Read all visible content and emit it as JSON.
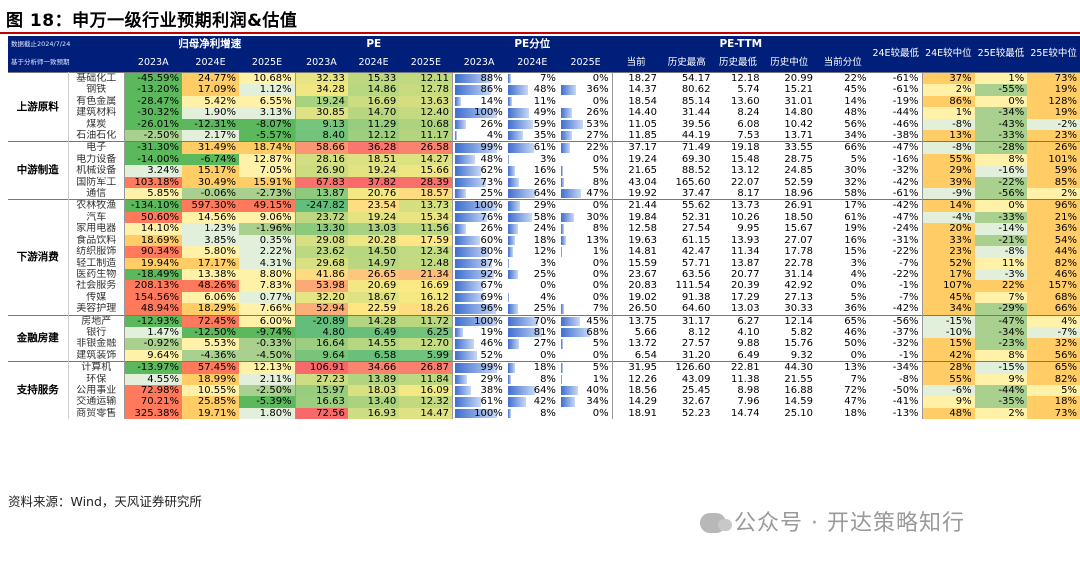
{
  "title": "图 18：申万一级行业预期利润&估值",
  "source": "资料来源：Wind，天风证券研究所",
  "watermark": "公众号 · 开达策略知行",
  "header": {
    "note1": "数据截止2024/7/24",
    "note2": "基于分析师一致预期",
    "profit_growth": "归母净利增速",
    "pe": "PE",
    "pe_pct": "PE分位",
    "pe_ttm": "PE-TTM",
    "years": [
      "2023A",
      "2024E",
      "2025E"
    ],
    "ttm_cols": [
      "当前",
      "历史最高",
      "历史最低",
      "历史中位",
      "当前分位"
    ],
    "extra_cols": [
      "24E较最低",
      "24E较中位",
      "25E较最低",
      "25E较中位"
    ]
  },
  "groups": [
    {
      "name": "上游原料",
      "rows": [
        [
          "基础化工",
          "-45.59%",
          "24.77%",
          "10.68%",
          "32.33",
          "15.33",
          "12.11",
          "88%",
          "7%",
          "0%",
          "18.27",
          "54.17",
          "12.18",
          "20.99",
          "22%",
          "-61%",
          "37%",
          "1%",
          "73%"
        ],
        [
          "钢铁",
          "-13.20%",
          "17.09%",
          "1.12%",
          "34.28",
          "14.86",
          "12.78",
          "86%",
          "48%",
          "36%",
          "14.37",
          "80.62",
          "5.74",
          "15.21",
          "45%",
          "-61%",
          "2%",
          "-55%",
          "19%"
        ],
        [
          "有色金属",
          "-28.47%",
          "5.42%",
          "6.55%",
          "19.24",
          "16.69",
          "13.63",
          "14%",
          "11%",
          "0%",
          "18.54",
          "85.14",
          "13.60",
          "31.01",
          "14%",
          "-19%",
          "86%",
          "0%",
          "128%"
        ],
        [
          "建筑材料",
          "-30.32%",
          "1.90%",
          "3.13%",
          "30.85",
          "14.70",
          "12.40",
          "100%",
          "49%",
          "26%",
          "14.40",
          "31.44",
          "8.24",
          "14.80",
          "48%",
          "-44%",
          "1%",
          "-34%",
          "19%"
        ],
        [
          "煤炭",
          "-26.01%",
          "-12.31%",
          "-8.07%",
          "9.13",
          "11.29",
          "10.68",
          "26%",
          "59%",
          "53%",
          "11.05",
          "39.56",
          "6.08",
          "10.42",
          "56%",
          "-46%",
          "-8%",
          "-43%",
          "-2%"
        ],
        [
          "石油石化",
          "-2.50%",
          "2.17%",
          "-5.57%",
          "8.40",
          "12.12",
          "11.17",
          "4%",
          "35%",
          "27%",
          "11.85",
          "44.19",
          "7.53",
          "13.71",
          "34%",
          "-38%",
          "13%",
          "-33%",
          "23%"
        ]
      ]
    },
    {
      "name": "中游制造",
      "rows": [
        [
          "电子",
          "-31.30%",
          "31.49%",
          "18.74%",
          "58.66",
          "36.28",
          "26.58",
          "99%",
          "61%",
          "22%",
          "37.17",
          "71.49",
          "19.18",
          "33.55",
          "66%",
          "-47%",
          "-8%",
          "-28%",
          "26%"
        ],
        [
          "电力设备",
          "-14.00%",
          "-6.74%",
          "12.87%",
          "28.16",
          "18.51",
          "14.27",
          "48%",
          "3%",
          "0%",
          "19.24",
          "69.30",
          "15.48",
          "28.75",
          "5%",
          "-16%",
          "55%",
          "8%",
          "101%"
        ],
        [
          "机械设备",
          "3.24%",
          "15.17%",
          "7.05%",
          "26.90",
          "19.24",
          "15.66",
          "62%",
          "16%",
          "5%",
          "21.65",
          "88.52",
          "13.12",
          "24.85",
          "30%",
          "-32%",
          "29%",
          "-16%",
          "59%"
        ],
        [
          "国防军工",
          "103.18%",
          "30.49%",
          "15.91%",
          "67.83",
          "37.82",
          "28.39",
          "73%",
          "26%",
          "8%",
          "43.04",
          "165.60",
          "22.07",
          "52.59",
          "32%",
          "-42%",
          "39%",
          "-22%",
          "85%"
        ],
        [
          "通信",
          "5.85%",
          "-0.06%",
          "-2.73%",
          "13.87",
          "20.76",
          "18.57",
          "25%",
          "64%",
          "47%",
          "19.92",
          "37.47",
          "8.17",
          "18.96",
          "58%",
          "-61%",
          "-9%",
          "-56%",
          "2%"
        ]
      ]
    },
    {
      "name": "下游消费",
      "rows": [
        [
          "农林牧渔",
          "-134.10%",
          "597.30%",
          "49.15%",
          "-247.82",
          "23.54",
          "13.73",
          "100%",
          "29%",
          "0%",
          "21.44",
          "55.62",
          "13.73",
          "26.91",
          "17%",
          "-42%",
          "14%",
          "0%",
          "96%"
        ],
        [
          "汽车",
          "50.60%",
          "14.56%",
          "9.06%",
          "23.72",
          "19.24",
          "15.34",
          "76%",
          "58%",
          "30%",
          "19.84",
          "52.31",
          "10.26",
          "18.50",
          "61%",
          "-47%",
          "-4%",
          "-33%",
          "21%"
        ],
        [
          "家用电器",
          "14.10%",
          "1.23%",
          "-1.96%",
          "13.30",
          "13.03",
          "11.56",
          "26%",
          "24%",
          "8%",
          "12.58",
          "27.54",
          "9.95",
          "15.67",
          "19%",
          "-24%",
          "20%",
          "-14%",
          "36%"
        ],
        [
          "食品饮料",
          "18.69%",
          "3.85%",
          "0.35%",
          "29.08",
          "20.28",
          "17.59",
          "60%",
          "18%",
          "13%",
          "19.63",
          "61.15",
          "13.93",
          "27.07",
          "16%",
          "-31%",
          "33%",
          "-21%",
          "54%"
        ],
        [
          "纺织服饰",
          "90.34%",
          "5.80%",
          "2.22%",
          "23.62",
          "14.50",
          "12.34",
          "80%",
          "12%",
          "1%",
          "14.81",
          "42.47",
          "11.34",
          "17.78",
          "15%",
          "-22%",
          "23%",
          "-8%",
          "44%"
        ],
        [
          "轻工制造",
          "19.94%",
          "17.17%",
          "4.31%",
          "29.68",
          "14.97",
          "12.48",
          "87%",
          "3%",
          "0%",
          "15.59",
          "57.71",
          "13.87",
          "22.78",
          "3%",
          "-7%",
          "52%",
          "11%",
          "82%"
        ],
        [
          "医药生物",
          "-18.49%",
          "13.38%",
          "8.80%",
          "41.86",
          "26.65",
          "21.34",
          "92%",
          "25%",
          "0%",
          "23.67",
          "63.56",
          "20.77",
          "31.14",
          "4%",
          "-22%",
          "17%",
          "-3%",
          "46%"
        ],
        [
          "社会服务",
          "208.13%",
          "48.26%",
          "7.83%",
          "53.98",
          "20.69",
          "16.69",
          "67%",
          "0%",
          "0%",
          "20.83",
          "111.54",
          "20.39",
          "42.92",
          "0%",
          "-1%",
          "107%",
          "22%",
          "157%"
        ],
        [
          "传媒",
          "154.56%",
          "6.06%",
          "0.77%",
          "32.20",
          "18.67",
          "16.12",
          "69%",
          "4%",
          "0%",
          "19.02",
          "91.38",
          "17.29",
          "27.13",
          "5%",
          "-7%",
          "45%",
          "7%",
          "68%"
        ],
        [
          "美容护理",
          "48.94%",
          "18.29%",
          "7.66%",
          "52.94",
          "22.59",
          "18.26",
          "96%",
          "25%",
          "7%",
          "26.50",
          "64.60",
          "13.03",
          "30.33",
          "36%",
          "-42%",
          "34%",
          "-29%",
          "66%"
        ]
      ]
    },
    {
      "name": "金融房建",
      "rows": [
        [
          "房地产",
          "-12.93%",
          "72.45%",
          "6.00%",
          "-20.89",
          "14.28",
          "11.72",
          "100%",
          "70%",
          "45%",
          "13.75",
          "31.17",
          "6.27",
          "12.14",
          "65%",
          "-56%",
          "-15%",
          "-47%",
          "4%"
        ],
        [
          "银行",
          "1.47%",
          "-12.50%",
          "-9.74%",
          "4.80",
          "6.49",
          "6.25",
          "19%",
          "81%",
          "68%",
          "5.66",
          "8.12",
          "4.10",
          "5.82",
          "46%",
          "-37%",
          "-10%",
          "-34%",
          "-7%"
        ],
        [
          "非银金融",
          "-0.92%",
          "5.53%",
          "-0.33%",
          "16.64",
          "14.55",
          "12.70",
          "46%",
          "27%",
          "5%",
          "13.72",
          "27.57",
          "9.88",
          "15.76",
          "50%",
          "-32%",
          "15%",
          "-23%",
          "32%"
        ],
        [
          "建筑装饰",
          "9.64%",
          "-4.36%",
          "-4.50%",
          "9.64",
          "6.58",
          "5.99",
          "52%",
          "0%",
          "0%",
          "6.54",
          "31.20",
          "6.49",
          "9.32",
          "0%",
          "-1%",
          "42%",
          "8%",
          "56%"
        ]
      ]
    },
    {
      "name": "支持服务",
      "rows": [
        [
          "计算机",
          "-13.97%",
          "57.45%",
          "12.13%",
          "106.91",
          "34.66",
          "26.87",
          "99%",
          "18%",
          "5%",
          "31.95",
          "126.60",
          "22.81",
          "44.30",
          "13%",
          "-34%",
          "28%",
          "-15%",
          "65%"
        ],
        [
          "环保",
          "4.55%",
          "18.99%",
          "2.11%",
          "27.23",
          "13.89",
          "11.84",
          "29%",
          "8%",
          "1%",
          "12.26",
          "43.09",
          "11.38",
          "21.55",
          "7%",
          "-8%",
          "55%",
          "9%",
          "82%"
        ],
        [
          "公用事业",
          "72.98%",
          "10.55%",
          "-2.50%",
          "15.97",
          "18.03",
          "16.09",
          "38%",
          "64%",
          "40%",
          "18.56",
          "25.45",
          "8.98",
          "16.88",
          "72%",
          "-50%",
          "-6%",
          "-44%",
          "5%"
        ],
        [
          "交通运输",
          "70.21%",
          "25.85%",
          "-5.39%",
          "16.63",
          "13.40",
          "12.32",
          "61%",
          "42%",
          "34%",
          "14.29",
          "32.67",
          "7.96",
          "14.59",
          "47%",
          "-41%",
          "9%",
          "-35%",
          "18%"
        ],
        [
          "商贸零售",
          "325.38%",
          "19.71%",
          "1.80%",
          "72.56",
          "16.93",
          "14.47",
          "100%",
          "8%",
          "0%",
          "18.91",
          "52.23",
          "14.74",
          "25.10",
          "18%",
          "-13%",
          "48%",
          "2%",
          "73%"
        ]
      ]
    }
  ]
}
